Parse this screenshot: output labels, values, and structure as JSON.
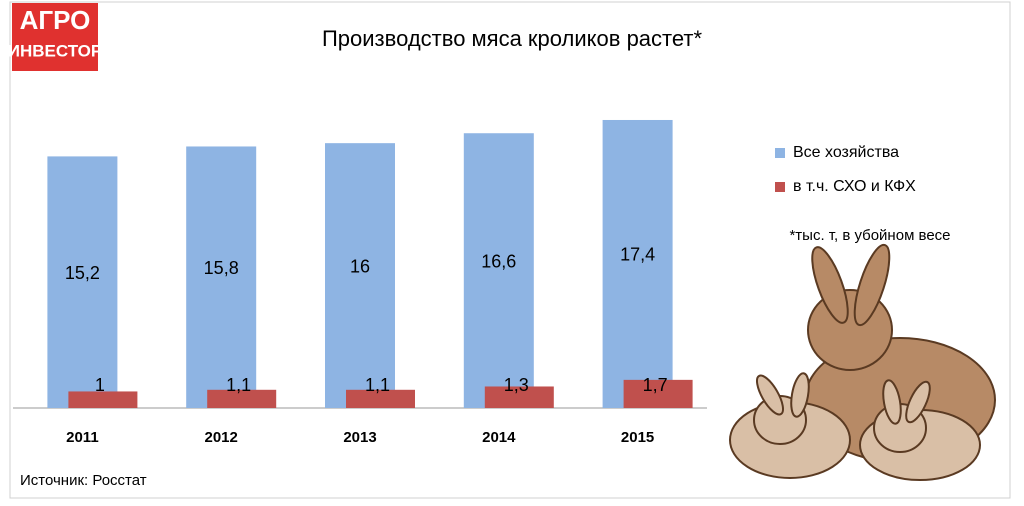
{
  "logo": {
    "line1": "АГРО",
    "line2": "ИНВЕСТОР"
  },
  "chart_data": {
    "type": "bar",
    "title": "Производство мяса кроликов растет*",
    "note": "*тыс. т, в убойном весе",
    "source": "Источник: Росстат",
    "categories": [
      "2011",
      "2012",
      "2013",
      "2014",
      "2015"
    ],
    "series": [
      {
        "name": "Все хозяйства",
        "color": "#8eb4e3",
        "values": [
          15.2,
          15.8,
          16,
          16.6,
          17.4
        ],
        "value_labels": [
          "15,2",
          "15,8",
          "16",
          "16,6",
          "17,4"
        ]
      },
      {
        "name": "в т.ч. СХО и КФХ",
        "color": "#c0504d",
        "values": [
          1,
          1.1,
          1.1,
          1.3,
          1.7
        ],
        "value_labels": [
          "1",
          "1,1",
          "1,1",
          "1,3",
          "1,7"
        ]
      }
    ],
    "ylim": [
      0,
      19
    ],
    "grid": false
  }
}
